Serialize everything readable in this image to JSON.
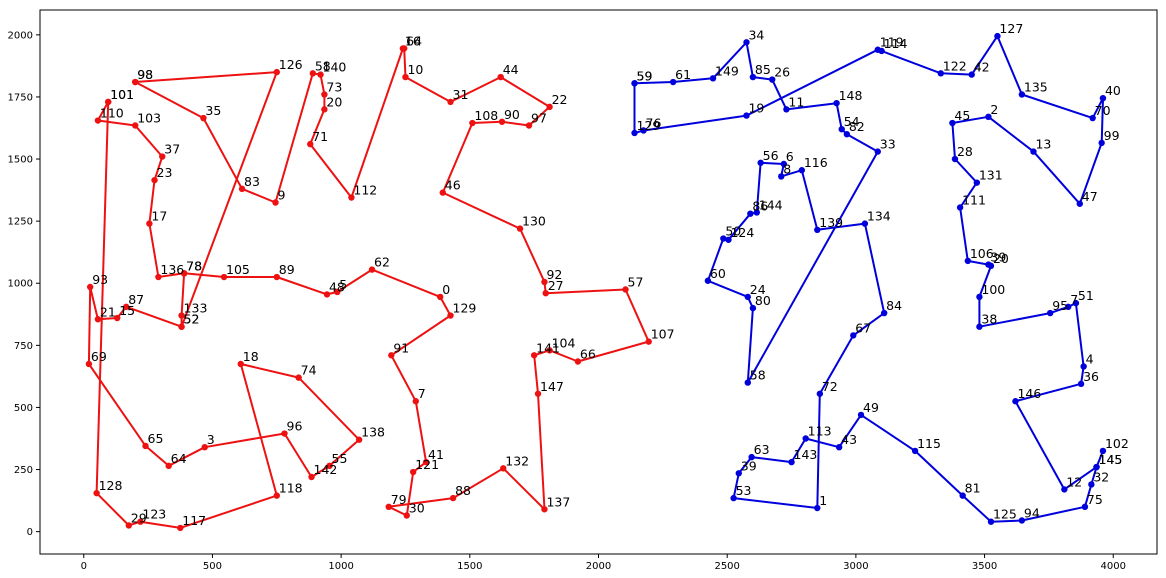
{
  "chart_data": {
    "type": "line",
    "title": "",
    "xlabel": "",
    "ylabel": "",
    "xlim": [
      -170,
      4170
    ],
    "ylim": [
      -90,
      2100
    ],
    "xticks": [
      0,
      500,
      1000,
      1500,
      2000,
      2500,
      3000,
      3500,
      4000
    ],
    "yticks": [
      0,
      250,
      500,
      750,
      1000,
      1250,
      1500,
      1750,
      2000
    ],
    "grid": false,
    "colors": {
      "route_a": "#ee1111",
      "route_b": "#0000dd"
    },
    "series": [
      {
        "id": "route_a",
        "color": "#ee1111",
        "points": [
          {
            "label": "98",
            "x": 200,
            "y": 1810
          },
          {
            "label": "126",
            "x": 750,
            "y": 1850
          },
          {
            "label": "52",
            "x": 380,
            "y": 825
          },
          {
            "label": "133",
            "x": 380,
            "y": 870
          },
          {
            "label": "78",
            "x": 390,
            "y": 1040
          },
          {
            "label": "105",
            "x": 545,
            "y": 1025
          },
          {
            "label": "89",
            "x": 750,
            "y": 1025
          },
          {
            "label": "48",
            "x": 945,
            "y": 955
          },
          {
            "label": "5",
            "x": 985,
            "y": 965
          },
          {
            "label": "62",
            "x": 1120,
            "y": 1055
          },
          {
            "label": "0",
            "x": 1385,
            "y": 945
          },
          {
            "label": "129",
            "x": 1425,
            "y": 870
          },
          {
            "label": "91",
            "x": 1195,
            "y": 710
          },
          {
            "label": "7",
            "x": 1290,
            "y": 525
          },
          {
            "label": "41",
            "x": 1330,
            "y": 280
          },
          {
            "label": "121",
            "x": 1280,
            "y": 240
          },
          {
            "label": "30",
            "x": 1255,
            "y": 65
          },
          {
            "label": "79",
            "x": 1185,
            "y": 100
          },
          {
            "label": "88",
            "x": 1435,
            "y": 135
          },
          {
            "label": "132",
            "x": 1630,
            "y": 255
          },
          {
            "label": "137",
            "x": 1790,
            "y": 90
          },
          {
            "label": "147",
            "x": 1765,
            "y": 555
          },
          {
            "label": "141",
            "x": 1750,
            "y": 710
          },
          {
            "label": "104",
            "x": 1810,
            "y": 730
          },
          {
            "label": "66",
            "x": 1920,
            "y": 685
          },
          {
            "label": "107",
            "x": 2195,
            "y": 765
          },
          {
            "label": "57",
            "x": 2105,
            "y": 975
          },
          {
            "label": "27",
            "x": 1795,
            "y": 960
          },
          {
            "label": "92",
            "x": 1790,
            "y": 1005
          },
          {
            "label": "130",
            "x": 1695,
            "y": 1220
          },
          {
            "label": "46",
            "x": 1395,
            "y": 1365
          },
          {
            "label": "108",
            "x": 1510,
            "y": 1645
          },
          {
            "label": "90",
            "x": 1625,
            "y": 1650
          },
          {
            "label": "97",
            "x": 1730,
            "y": 1635
          },
          {
            "label": "22",
            "x": 1810,
            "y": 1710
          },
          {
            "label": "44",
            "x": 1620,
            "y": 1830
          },
          {
            "label": "31",
            "x": 1425,
            "y": 1730
          },
          {
            "label": "10",
            "x": 1250,
            "y": 1830
          },
          {
            "label": "64",
            "x": 1245,
            "y": 1945
          },
          {
            "label": "16",
            "x": 1240,
            "y": 1945
          },
          {
            "label": "112",
            "x": 1040,
            "y": 1345
          },
          {
            "label": "71",
            "x": 880,
            "y": 1560
          },
          {
            "label": "20",
            "x": 935,
            "y": 1700
          },
          {
            "label": "73",
            "x": 935,
            "y": 1760
          },
          {
            "label": "140",
            "x": 920,
            "y": 1840
          },
          {
            "label": "58",
            "x": 890,
            "y": 1845
          },
          {
            "label": "9",
            "x": 745,
            "y": 1325
          },
          {
            "label": "83",
            "x": 615,
            "y": 1380
          },
          {
            "label": "35",
            "x": 465,
            "y": 1665
          },
          {
            "label": "98",
            "x": 200,
            "y": 1810
          }
        ]
      },
      {
        "id": "route_a_2",
        "color": "#ee1111",
        "points": [
          {
            "label": "101",
            "x": 95,
            "y": 1730
          },
          {
            "label": "110",
            "x": 55,
            "y": 1655
          },
          {
            "label": "103",
            "x": 200,
            "y": 1635
          },
          {
            "label": "37",
            "x": 305,
            "y": 1510
          },
          {
            "label": "23",
            "x": 275,
            "y": 1415
          },
          {
            "label": "17",
            "x": 255,
            "y": 1240
          },
          {
            "label": "136",
            "x": 290,
            "y": 1025
          },
          {
            "label": "78",
            "x": 390,
            "y": 1040
          }
        ]
      },
      {
        "id": "route_a_3",
        "color": "#ee1111",
        "points": [
          {
            "label": "101",
            "x": 95,
            "y": 1730
          },
          {
            "label": "128",
            "x": 50,
            "y": 155
          },
          {
            "label": "29",
            "x": 175,
            "y": 25
          },
          {
            "label": "123",
            "x": 220,
            "y": 40
          },
          {
            "label": "117",
            "x": 375,
            "y": 15
          },
          {
            "label": "118",
            "x": 750,
            "y": 145
          },
          {
            "label": "18",
            "x": 610,
            "y": 675
          },
          {
            "label": "74",
            "x": 835,
            "y": 620
          },
          {
            "label": "138",
            "x": 1070,
            "y": 370
          },
          {
            "label": "55",
            "x": 955,
            "y": 265
          },
          {
            "label": "142",
            "x": 885,
            "y": 220
          },
          {
            "label": "96",
            "x": 780,
            "y": 395
          },
          {
            "label": "3",
            "x": 470,
            "y": 340
          },
          {
            "label": "64",
            "x": 330,
            "y": 265
          },
          {
            "label": "65",
            "x": 240,
            "y": 345
          },
          {
            "label": "69",
            "x": 20,
            "y": 675
          },
          {
            "label": "93",
            "x": 25,
            "y": 985
          },
          {
            "label": "21",
            "x": 55,
            "y": 855
          },
          {
            "label": "15",
            "x": 130,
            "y": 860
          },
          {
            "label": "87",
            "x": 165,
            "y": 905
          },
          {
            "label": "52",
            "x": 380,
            "y": 825
          }
        ]
      },
      {
        "id": "route_b",
        "color": "#0000dd",
        "points": [
          {
            "label": "59",
            "x": 2140,
            "y": 1805
          },
          {
            "label": "61",
            "x": 2290,
            "y": 1810
          },
          {
            "label": "149",
            "x": 2445,
            "y": 1825
          },
          {
            "label": "34",
            "x": 2575,
            "y": 1970
          },
          {
            "label": "85",
            "x": 2600,
            "y": 1830
          },
          {
            "label": "26",
            "x": 2675,
            "y": 1820
          },
          {
            "label": "11",
            "x": 2730,
            "y": 1700
          },
          {
            "label": "148",
            "x": 2925,
            "y": 1725
          },
          {
            "label": "54",
            "x": 2945,
            "y": 1620
          },
          {
            "label": "82",
            "x": 2965,
            "y": 1600
          },
          {
            "label": "33",
            "x": 3085,
            "y": 1530
          },
          {
            "label": "58",
            "x": 2580,
            "y": 600
          },
          {
            "label": "80",
            "x": 2600,
            "y": 900
          },
          {
            "label": "24",
            "x": 2580,
            "y": 945
          },
          {
            "label": "60",
            "x": 2425,
            "y": 1010
          },
          {
            "label": "50",
            "x": 2485,
            "y": 1180
          },
          {
            "label": "124",
            "x": 2505,
            "y": 1175
          },
          {
            "label": "86",
            "x": 2590,
            "y": 1280
          },
          {
            "label": "144",
            "x": 2615,
            "y": 1285
          },
          {
            "label": "56",
            "x": 2630,
            "y": 1485
          },
          {
            "label": "6",
            "x": 2720,
            "y": 1480
          },
          {
            "label": "8",
            "x": 2710,
            "y": 1430
          },
          {
            "label": "116",
            "x": 2790,
            "y": 1455
          },
          {
            "label": "139",
            "x": 2850,
            "y": 1215
          },
          {
            "label": "134",
            "x": 3035,
            "y": 1240
          },
          {
            "label": "84",
            "x": 3110,
            "y": 880
          },
          {
            "label": "67",
            "x": 2990,
            "y": 790
          },
          {
            "label": "72",
            "x": 2860,
            "y": 555
          },
          {
            "label": "1",
            "x": 2850,
            "y": 95
          },
          {
            "label": "53",
            "x": 2525,
            "y": 135
          },
          {
            "label": "39",
            "x": 2545,
            "y": 235
          },
          {
            "label": "63",
            "x": 2595,
            "y": 300
          },
          {
            "label": "143",
            "x": 2750,
            "y": 280
          },
          {
            "label": "113",
            "x": 2805,
            "y": 375
          },
          {
            "label": "43",
            "x": 2935,
            "y": 340
          },
          {
            "label": "49",
            "x": 3020,
            "y": 470
          },
          {
            "label": "115",
            "x": 3230,
            "y": 325
          },
          {
            "label": "81",
            "x": 3415,
            "y": 145
          },
          {
            "label": "125",
            "x": 3525,
            "y": 40
          },
          {
            "label": "94",
            "x": 3645,
            "y": 45
          },
          {
            "label": "75",
            "x": 3890,
            "y": 100
          },
          {
            "label": "32",
            "x": 3915,
            "y": 190
          },
          {
            "label": "145",
            "x": 3935,
            "y": 260
          },
          {
            "label": "102",
            "x": 3960,
            "y": 325
          },
          {
            "label": "145",
            "x": 3935,
            "y": 260
          },
          {
            "label": "12",
            "x": 3810,
            "y": 170
          },
          {
            "label": "146",
            "x": 3620,
            "y": 525
          },
          {
            "label": "36",
            "x": 3875,
            "y": 595
          },
          {
            "label": "4",
            "x": 3885,
            "y": 665
          },
          {
            "label": "51",
            "x": 3855,
            "y": 920
          },
          {
            "label": "7",
            "x": 3825,
            "y": 905
          },
          {
            "label": "95",
            "x": 3755,
            "y": 880
          },
          {
            "label": "38",
            "x": 3480,
            "y": 825
          },
          {
            "label": "100",
            "x": 3480,
            "y": 945
          },
          {
            "label": "20",
            "x": 3525,
            "y": 1070
          },
          {
            "label": "39",
            "x": 3515,
            "y": 1075
          },
          {
            "label": "106",
            "x": 3435,
            "y": 1090
          },
          {
            "label": "111",
            "x": 3405,
            "y": 1305
          },
          {
            "label": "131",
            "x": 3470,
            "y": 1405
          },
          {
            "label": "28",
            "x": 3385,
            "y": 1500
          },
          {
            "label": "45",
            "x": 3375,
            "y": 1645
          },
          {
            "label": "2",
            "x": 3515,
            "y": 1670
          },
          {
            "label": "13",
            "x": 3690,
            "y": 1530
          },
          {
            "label": "47",
            "x": 3870,
            "y": 1320
          },
          {
            "label": "99",
            "x": 3955,
            "y": 1565
          },
          {
            "label": "40",
            "x": 3960,
            "y": 1745
          },
          {
            "label": "70",
            "x": 3920,
            "y": 1665
          },
          {
            "label": "135",
            "x": 3645,
            "y": 1760
          },
          {
            "label": "127",
            "x": 3550,
            "y": 1995
          },
          {
            "label": "42",
            "x": 3450,
            "y": 1840
          },
          {
            "label": "122",
            "x": 3330,
            "y": 1845
          },
          {
            "label": "114",
            "x": 3100,
            "y": 1935
          },
          {
            "label": "119",
            "x": 3085,
            "y": 1940
          },
          {
            "label": "19",
            "x": 2575,
            "y": 1675
          },
          {
            "label": "76",
            "x": 2175,
            "y": 1615
          },
          {
            "label": "129",
            "x": 2140,
            "y": 1605
          },
          {
            "label": "59",
            "x": 2140,
            "y": 1805
          }
        ]
      }
    ]
  }
}
